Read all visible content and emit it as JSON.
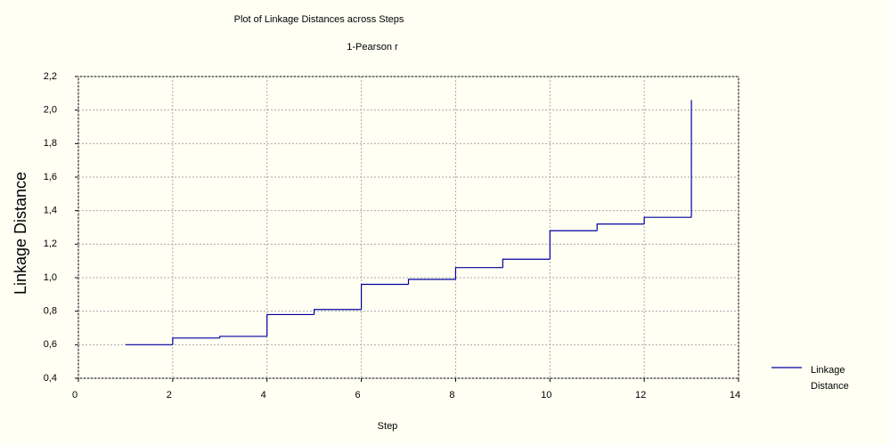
{
  "chart_data": {
    "type": "step",
    "title": "Plot of Linkage Distances across Steps",
    "subtitle": "1-Pearson r",
    "x_label": "Step",
    "y_label": "Linkage Distance",
    "x": [
      1,
      2,
      3,
      4,
      5,
      6,
      7,
      8,
      9,
      10,
      11,
      12,
      13
    ],
    "series": [
      {
        "name": "Linkage Distance",
        "color": "#0000a0",
        "values": [
          0.6,
          0.64,
          0.65,
          0.78,
          0.81,
          0.96,
          0.99,
          1.06,
          1.11,
          1.28,
          1.32,
          1.36,
          2.06
        ]
      }
    ],
    "xlim": [
      0,
      14
    ],
    "xticks": [
      0,
      2,
      4,
      6,
      8,
      10,
      12,
      14
    ],
    "ylim": [
      0.4,
      2.2
    ],
    "yticks": [
      {
        "value": 0.4,
        "label": "0,4"
      },
      {
        "value": 0.6,
        "label": "0,6"
      },
      {
        "value": 0.8,
        "label": "0,8"
      },
      {
        "value": 1.0,
        "label": "1,0"
      },
      {
        "value": 1.2,
        "label": "1,2"
      },
      {
        "value": 1.4,
        "label": "1,4"
      },
      {
        "value": 1.6,
        "label": "1,6"
      },
      {
        "value": 1.8,
        "label": "1,8"
      },
      {
        "value": 2.0,
        "label": "2,0"
      },
      {
        "value": 2.2,
        "label": "2,2"
      }
    ],
    "grid": true,
    "legend": "right"
  }
}
